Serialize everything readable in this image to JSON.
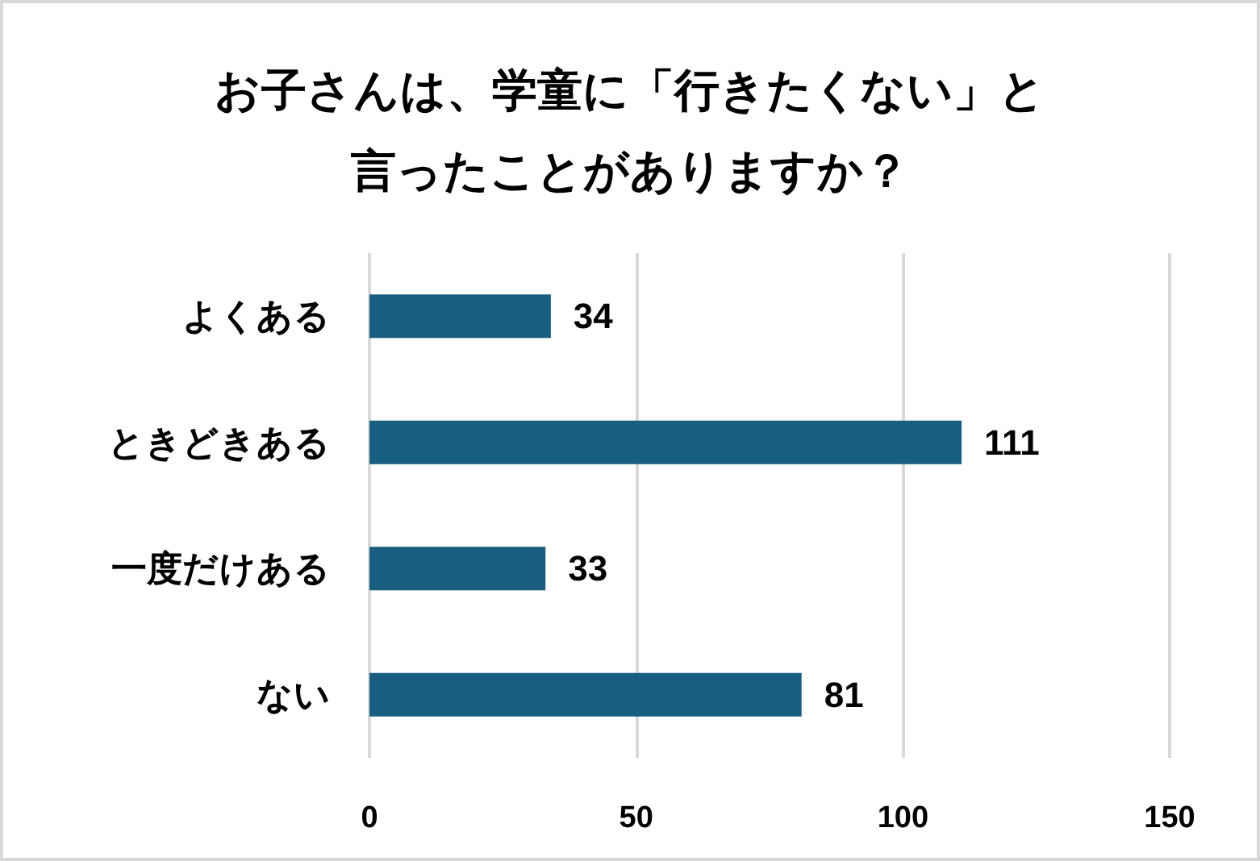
{
  "chart_data": {
    "type": "bar",
    "orientation": "horizontal",
    "title": "お子さんは、学童に「行きたくない」と言ったことがありますか？",
    "categories": [
      "よくある",
      "ときどきある",
      "一度だけある",
      "ない"
    ],
    "values": [
      34,
      111,
      33,
      81
    ],
    "color": "#175e80",
    "xlim": [
      0,
      150
    ],
    "xticks": [
      0,
      50,
      100,
      150
    ],
    "grid": "x",
    "data_labels": true
  }
}
